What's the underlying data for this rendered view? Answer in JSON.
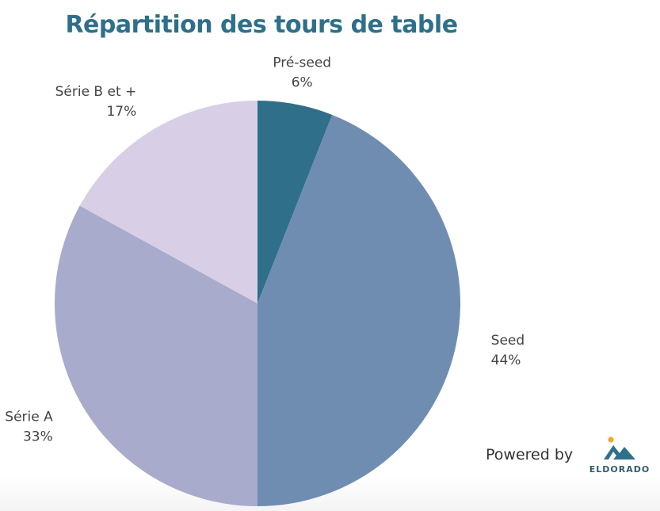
{
  "chart_data": {
    "type": "pie",
    "title": "Répartition des tours de table",
    "slices": [
      {
        "label": "Pré-seed",
        "value": 6,
        "value_label": "6%",
        "color": "#2f6f8a"
      },
      {
        "label": "Seed",
        "value": 44,
        "value_label": "44%",
        "color": "#6f8db0"
      },
      {
        "label": "Série A",
        "value": 33,
        "value_label": "33%",
        "color": "#a8abcb"
      },
      {
        "label": "Série B et +",
        "value": 17,
        "value_label": "17%",
        "color": "#d8cfe6"
      }
    ],
    "start_angle": "12 o'clock",
    "direction": "clockwise",
    "legend": "none"
  },
  "footer": {
    "powered_by": "Powered by",
    "logo_text": "ELDORADO",
    "logo_icon": "mountain-sun-icon"
  },
  "colors": {
    "title": "#2f6f8a",
    "logo_dark": "#2f6f8a",
    "logo_sun": "#f0a830"
  }
}
